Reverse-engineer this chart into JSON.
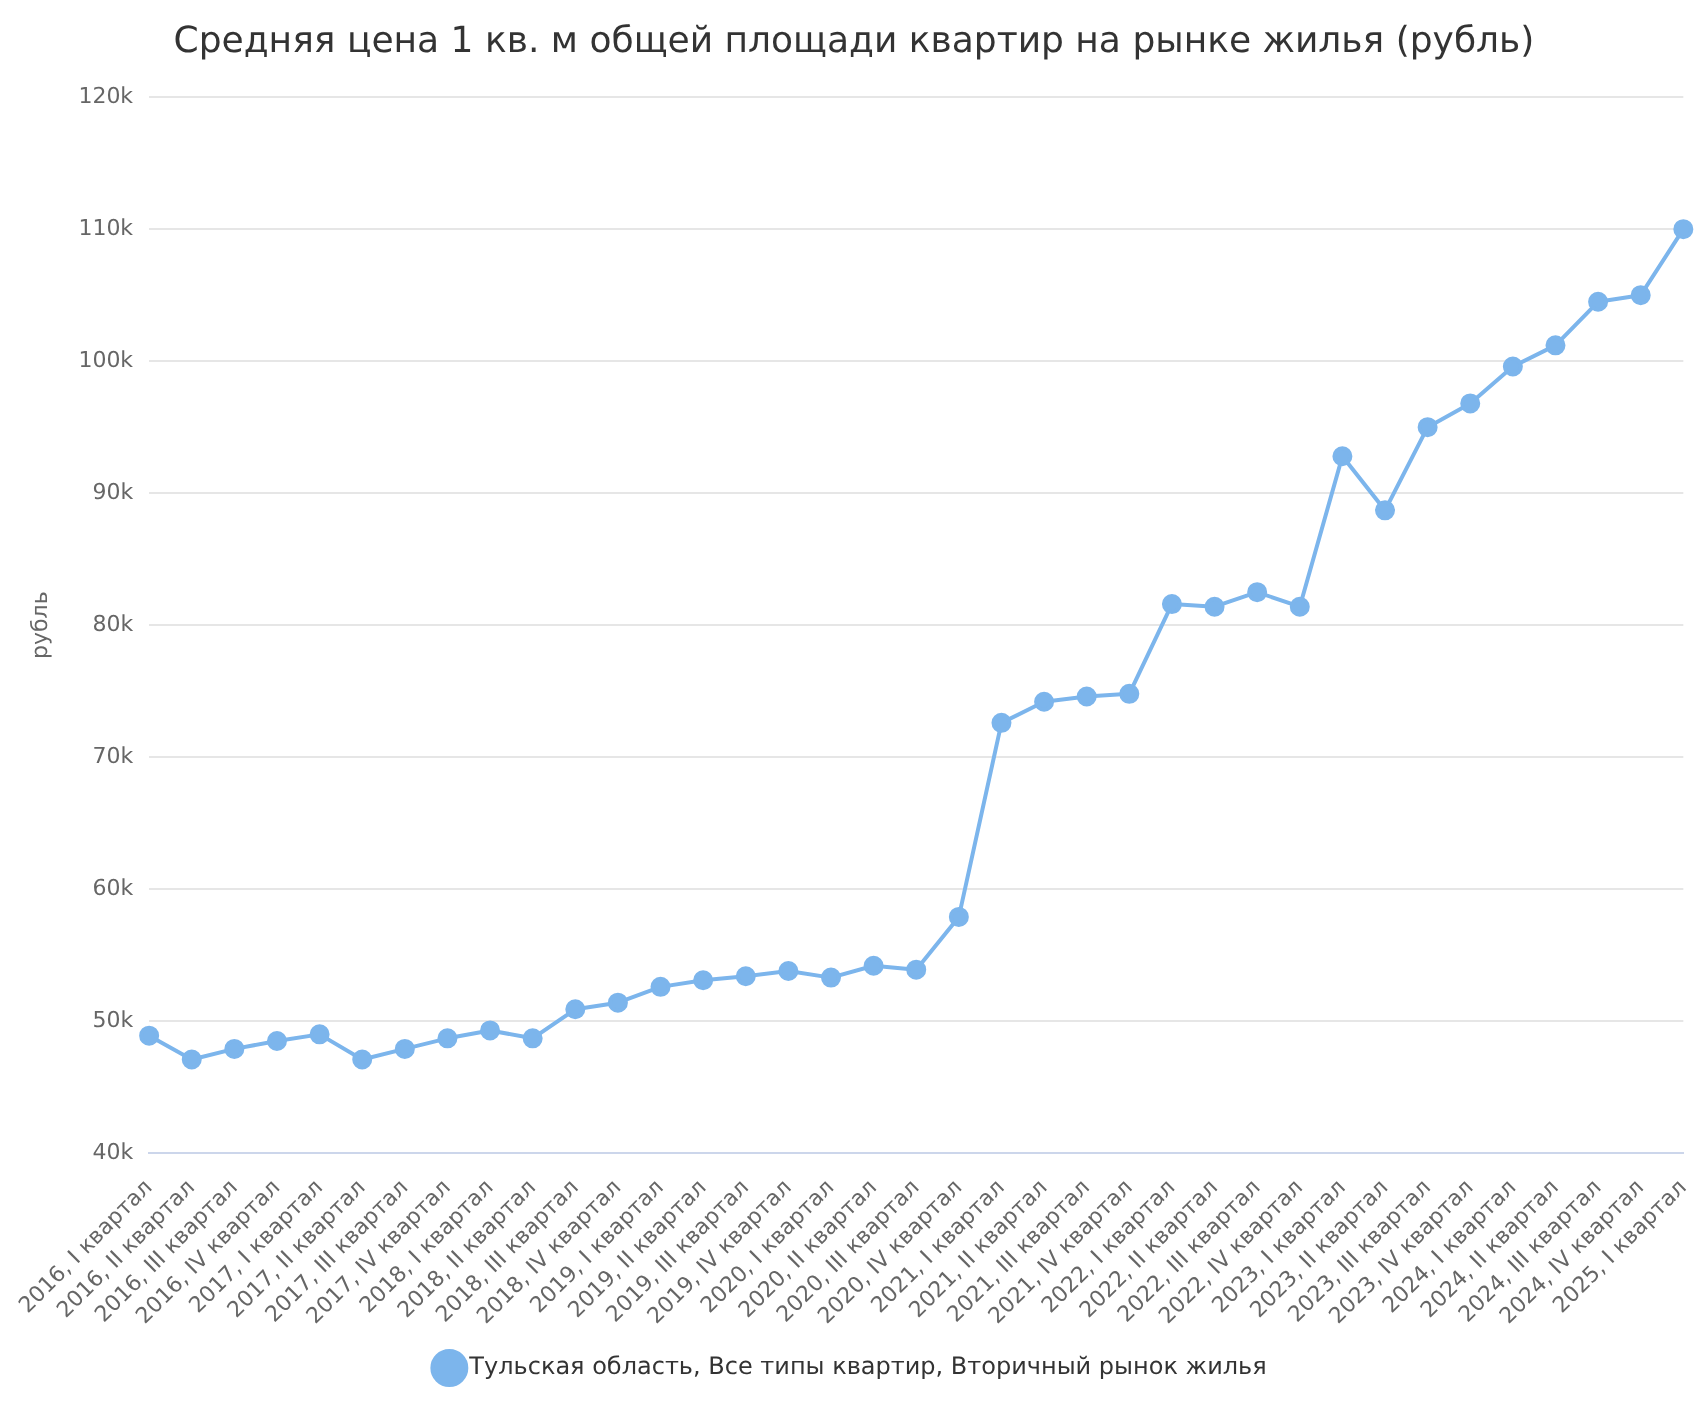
{
  "chart_data": {
    "type": "line",
    "title": "Средняя цена 1 кв. м общей площади квартир на рынке жилья (рубль)",
    "ylabel": "рубль",
    "categories": [
      "2016, I квартал",
      "2016, II квартал",
      "2016, III квартал",
      "2016, IV квартал",
      "2017, I квартал",
      "2017, II квартал",
      "2017, III квартал",
      "2017, IV квартал",
      "2018, I квартал",
      "2018, II квартал",
      "2018, III квартал",
      "2018, IV квартал",
      "2019, I квартал",
      "2019, II квартал",
      "2019, III квартал",
      "2019, IV квартал",
      "2020, I квартал",
      "2020, II квартал",
      "2020, III квартал",
      "2020, IV квартал",
      "2021, I квартал",
      "2021, II квартал",
      "2021, III квартал",
      "2021, IV квартал",
      "2022, I квартал",
      "2022, II квартал",
      "2022, III квартал",
      "2022, IV квартал",
      "2023, I квартал",
      "2023, II квартал",
      "2023, III квартал",
      "2023, IV квартал",
      "2024, I квартал",
      "2024, II квартал",
      "2024, III квартал",
      "2024, IV квартал",
      "2025, I квартал"
    ],
    "series": [
      {
        "name": "Тульская область, Все типы квартир, Вторичный рынок жилья",
        "color": "#7cb5ec",
        "values": [
          48900,
          47100,
          47900,
          48500,
          49000,
          47100,
          47900,
          48700,
          49300,
          48700,
          50900,
          51400,
          52600,
          53100,
          53400,
          53800,
          53300,
          54200,
          53900,
          57900,
          72600,
          74200,
          74600,
          74800,
          81600,
          81400,
          82500,
          81400,
          92800,
          88700,
          95000,
          96800,
          99600,
          101200,
          104500,
          105000,
          110000
        ]
      }
    ],
    "ylim": [
      40000,
      120000
    ],
    "yticks": [
      {
        "value": 40000,
        "label": "40k"
      },
      {
        "value": 50000,
        "label": "50k"
      },
      {
        "value": 60000,
        "label": "60k"
      },
      {
        "value": 70000,
        "label": "70k"
      },
      {
        "value": 80000,
        "label": "80k"
      },
      {
        "value": 90000,
        "label": "90k"
      },
      {
        "value": 100000,
        "label": "100k"
      },
      {
        "value": 110000,
        "label": "110k"
      },
      {
        "value": 120000,
        "label": "120k"
      }
    ],
    "grid": "y",
    "legend": "bottom",
    "marker": "circle",
    "line_style": "solid"
  }
}
